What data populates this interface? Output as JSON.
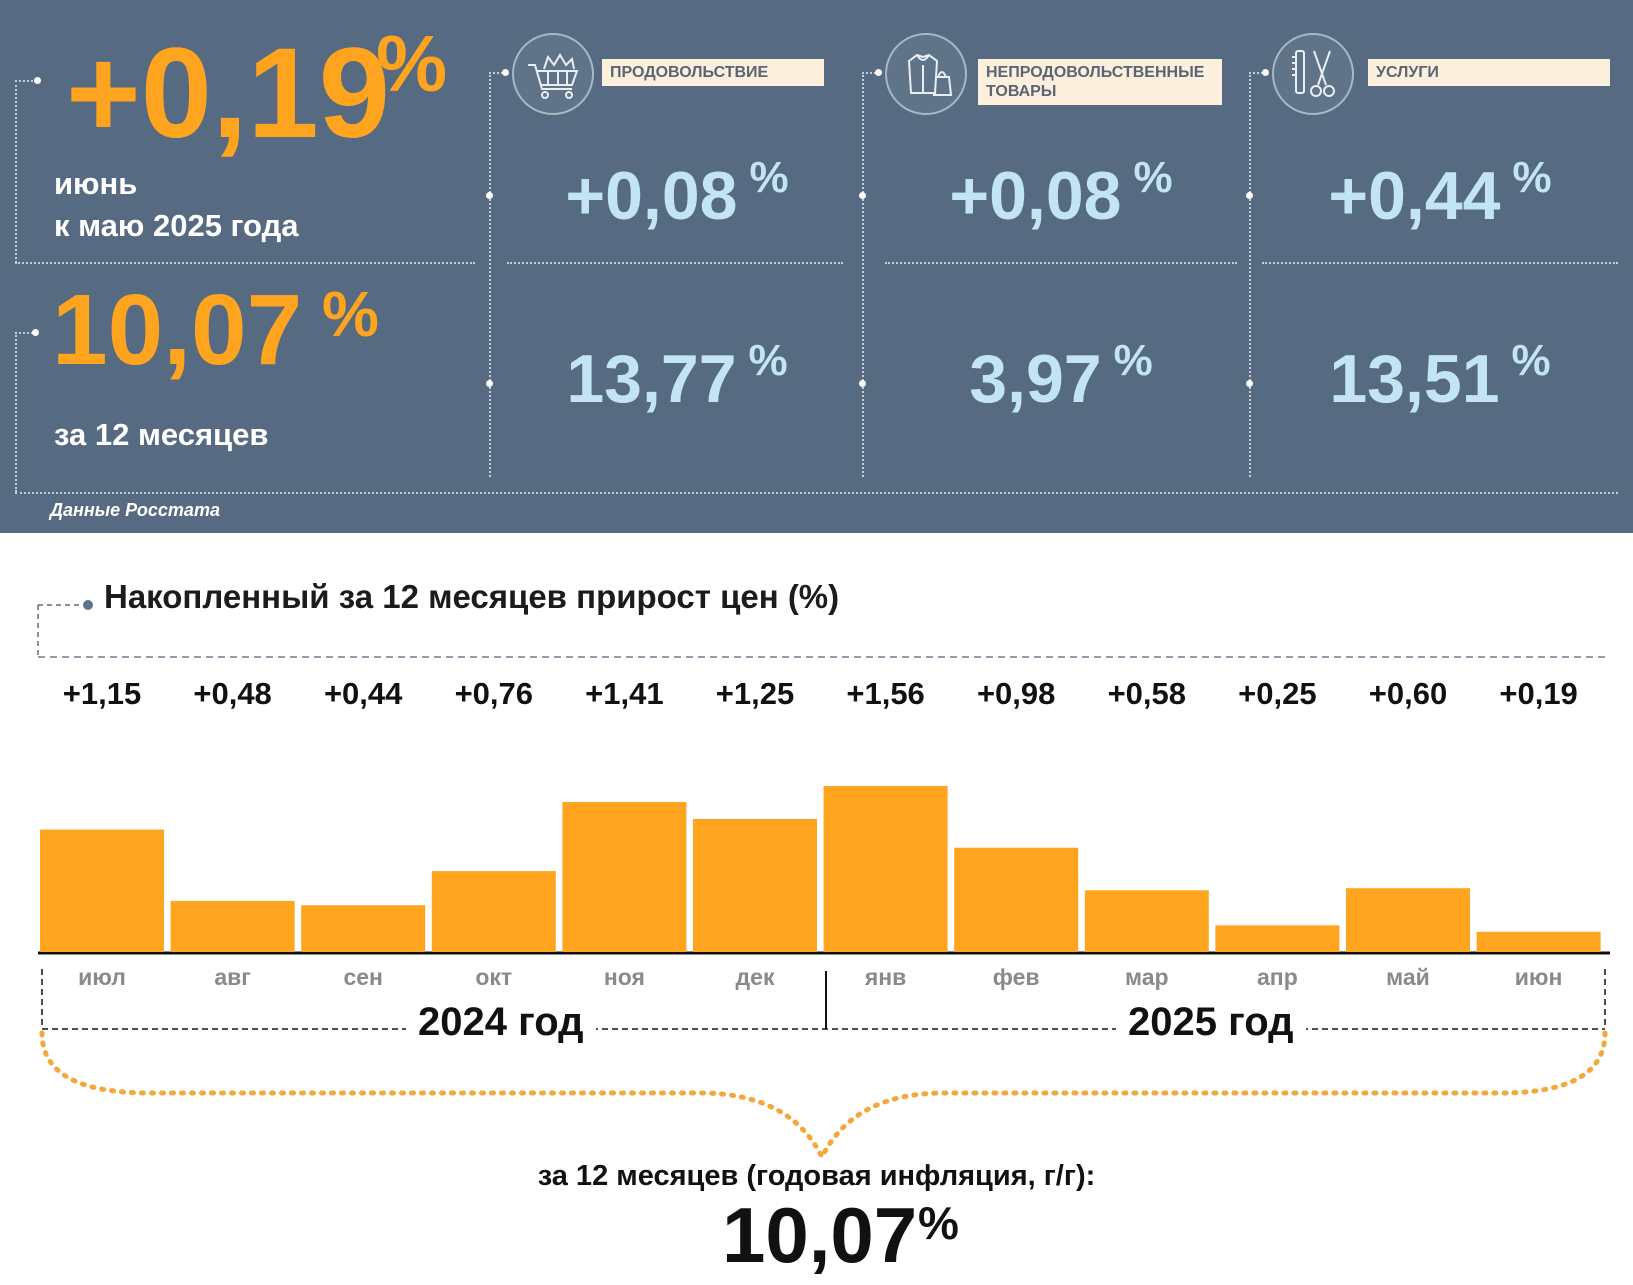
{
  "summary": {
    "monthly": {
      "value": "+0,19",
      "unit": "%",
      "caption_line1": "июнь",
      "caption_line2": "к маю 2025 года"
    },
    "annual": {
      "value": "10,07",
      "unit": "%",
      "caption": "за 12 месяцев"
    },
    "categories": [
      {
        "label": "ПРОДОВОЛЬСТВИЕ",
        "icon": "shopping-cart-icon",
        "monthly": "+0,08",
        "annual": "13,77",
        "unit": "%"
      },
      {
        "label_line1": "НЕПРОДОВОЛЬСТВЕННЫЕ",
        "label_line2": "ТОВАРЫ",
        "icon": "clothing-bag-icon",
        "monthly": "+0,08",
        "annual": "3,97",
        "unit": "%"
      },
      {
        "label": "УСЛУГИ",
        "icon": "comb-scissors-icon",
        "monthly": "+0,44",
        "annual": "13,51",
        "unit": "%"
      }
    ],
    "source": "Данные Росстата"
  },
  "colors": {
    "panel": "#566b82",
    "accent_orange": "#ffa41e",
    "value_blue": "#c2e4f5",
    "tag_bg": "#fcefde"
  },
  "chart_data": {
    "type": "bar",
    "title": "Накопленный за 12 месяцев прирост цен (%)",
    "categories": [
      "июл",
      "авг",
      "сен",
      "окт",
      "ноя",
      "дек",
      "янв",
      "фев",
      "мар",
      "апр",
      "май",
      "июн"
    ],
    "values": [
      1.15,
      0.48,
      0.44,
      0.76,
      1.41,
      1.25,
      1.56,
      0.98,
      0.58,
      0.25,
      0.6,
      0.19
    ],
    "value_labels": [
      "+1,15",
      "+0,48",
      "+0,44",
      "+0,76",
      "+1,41",
      "+1,25",
      "+1,56",
      "+0,98",
      "+0,58",
      "+0,25",
      "+0,60",
      "+0,19"
    ],
    "year_groups": [
      {
        "label": "2024 год",
        "months": [
          "июл",
          "авг",
          "сен",
          "окт",
          "ноя",
          "дек"
        ]
      },
      {
        "label": "2025 год",
        "months": [
          "янв",
          "фев",
          "мар",
          "апр",
          "май",
          "июн"
        ]
      }
    ],
    "bar_color": "#ffa41e",
    "total_caption": "за 12 месяцев (годовая инфляция, г/г):",
    "total_value": "10,07",
    "total_unit": "%",
    "grid": false,
    "legend": "none"
  }
}
